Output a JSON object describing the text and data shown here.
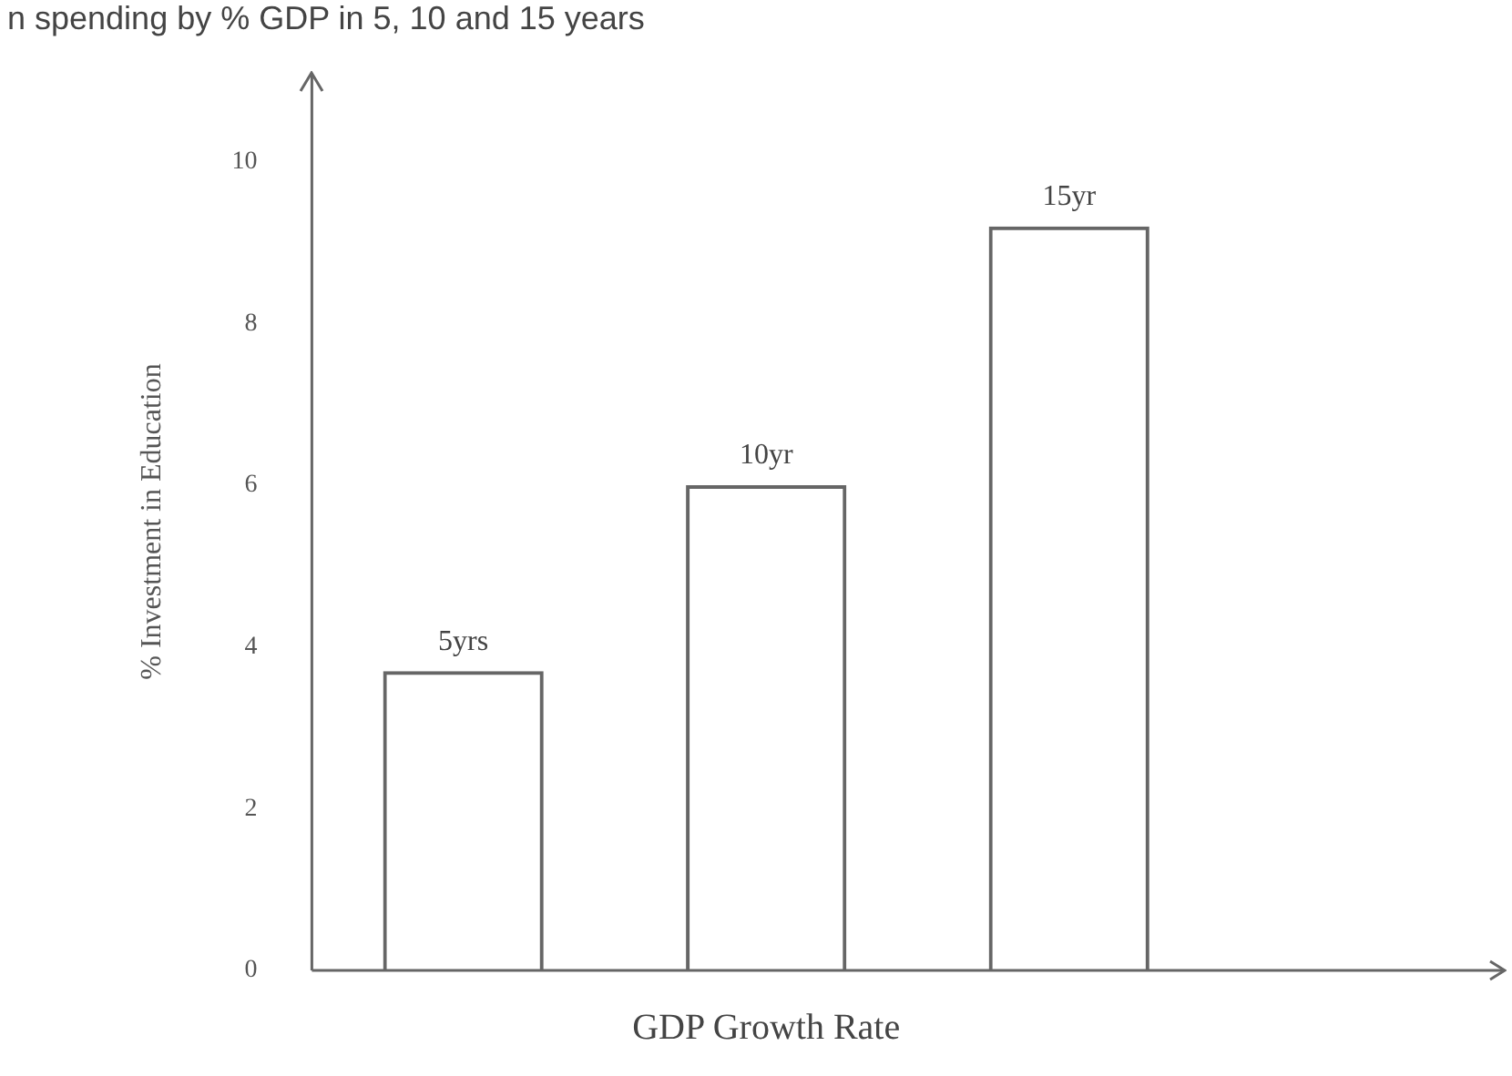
{
  "chart_data": {
    "type": "bar",
    "title": "n spending by % GDP in 5, 10 and 15 years",
    "xlabel": "GDP Growth Rate",
    "ylabel": "% Investment in Education",
    "categories": [
      "5yrs",
      "10yr",
      "15yr"
    ],
    "values": [
      3.7,
      6.0,
      9.2
    ],
    "color": "#666666",
    "ylim": [
      0,
      11.1
    ],
    "yticks": [
      0,
      2,
      4,
      6,
      8,
      10
    ],
    "grid": false,
    "legend": false
  }
}
